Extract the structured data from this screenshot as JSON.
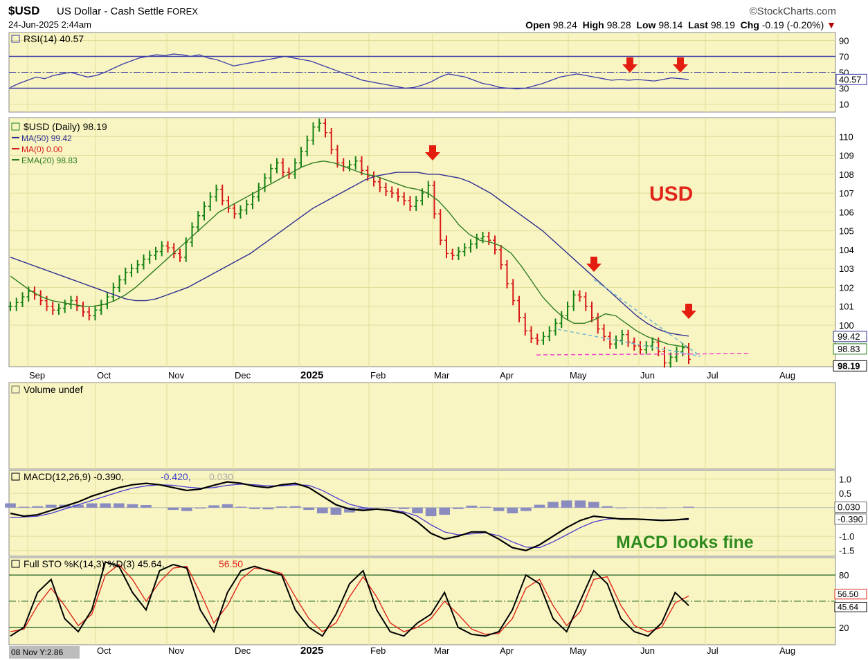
{
  "header": {
    "symbol": "$USD",
    "name": "US Dollar - Cash Settle",
    "exchange": "FOREX",
    "date": "24-Jun-2025 2:44am",
    "brand": "©StockCharts.com",
    "quote": {
      "open_label": "Open",
      "open": "98.24",
      "high_label": "High",
      "high": "98.28",
      "low_label": "Low",
      "low": "98.14",
      "last_label": "Last",
      "last": "98.19",
      "chg_label": "Chg",
      "chg": "-0.19 (-0.20%)"
    }
  },
  "colors": {
    "panel_bg": "#f8f5c3",
    "grid": "#e2dc9a",
    "ma50": "#2d2d8f",
    "ema20": "#2e7d1e",
    "up": "#148214",
    "down": "#d81818",
    "arrow": "#e31e10",
    "pink": "#ee44cc",
    "annot_red": "#e0261a",
    "annot_green": "#2e8b1e",
    "macd_hist": "#8a8cc0",
    "sto_d": "#e0261a"
  },
  "chart_data": [
    {
      "type": "line",
      "panel": "RSI",
      "legend": "RSI(14) 40.57",
      "ticks": [
        "90",
        "70",
        "50",
        "30",
        "10"
      ],
      "ylim": [
        0,
        100
      ],
      "last_value_label": "40.57",
      "values": [
        31,
        36,
        40,
        44,
        42,
        46,
        48,
        50,
        47,
        44,
        46,
        50,
        55,
        60,
        64,
        68,
        70,
        72,
        71,
        73,
        72,
        70,
        72,
        68,
        66,
        62,
        58,
        60,
        62,
        64,
        66,
        68,
        70,
        68,
        66,
        64,
        60,
        56,
        52,
        48,
        44,
        40,
        38,
        36,
        34,
        32,
        30,
        31,
        34,
        38,
        44,
        48,
        46,
        44,
        40,
        36,
        34,
        31,
        30,
        29,
        30,
        33,
        36,
        40,
        44,
        46,
        48,
        46,
        44,
        42,
        40,
        41,
        40,
        41,
        40,
        39,
        41,
        43,
        42,
        41
      ]
    },
    {
      "type": "line",
      "panel": "Price",
      "legend": {
        "title": "$USD (Daily) 98.19",
        "ma50": "MA(50) 99.42",
        "ma0": "MA(0) 0.00",
        "ema20": "EMA(20) 98.83"
      },
      "y_ticks": [
        "110",
        "109",
        "108",
        "107",
        "106",
        "105",
        "104",
        "103",
        "102",
        "101",
        "100"
      ],
      "ylim": [
        97.8,
        111
      ],
      "x_labels": [
        "Sep",
        "Oct",
        "Nov",
        "Dec",
        "2025",
        "Feb",
        "Mar",
        "Apr",
        "May",
        "Jun",
        "Jul",
        "Aug"
      ],
      "right_labels": [
        "99.42",
        "98.83",
        "98.19"
      ],
      "annotation": "USD",
      "close": [
        101.0,
        101.2,
        101.5,
        101.8,
        101.6,
        101.3,
        101.0,
        100.8,
        100.9,
        101.1,
        101.3,
        101.0,
        100.7,
        100.5,
        100.8,
        101.1,
        101.5,
        102.0,
        102.4,
        102.8,
        103.0,
        103.2,
        103.5,
        103.7,
        103.9,
        104.2,
        104.1,
        103.8,
        103.6,
        104.4,
        105.2,
        105.8,
        106.3,
        106.8,
        107.2,
        106.6,
        106.2,
        105.9,
        106.1,
        106.4,
        106.8,
        107.3,
        107.8,
        108.3,
        108.6,
        108.1,
        108.0,
        108.6,
        109.2,
        109.8,
        110.5,
        110.7,
        110.2,
        109.3,
        108.6,
        108.4,
        108.5,
        108.7,
        108.2,
        107.9,
        107.6,
        107.3,
        107.1,
        107.0,
        106.8,
        106.6,
        106.3,
        106.6,
        107.0,
        107.4,
        105.9,
        104.5,
        103.8,
        103.7,
        103.9,
        104.1,
        104.3,
        104.6,
        104.7,
        104.5,
        104.0,
        103.2,
        102.2,
        101.3,
        100.4,
        99.7,
        99.3,
        99.2,
        99.4,
        99.7,
        100.1,
        100.5,
        101.0,
        101.6,
        101.5,
        101.0,
        100.4,
        99.8,
        99.4,
        99.0,
        99.2,
        99.5,
        99.1,
        98.9,
        98.7,
        98.9,
        99.1,
        98.6,
        98.0,
        98.3,
        98.6,
        98.8,
        98.19
      ],
      "ma50": [
        103.6,
        103.4,
        103.2,
        103.0,
        102.8,
        102.6,
        102.4,
        102.2,
        102.0,
        101.8,
        101.6,
        101.4,
        101.3,
        101.3,
        101.4,
        101.6,
        101.8,
        102.0,
        102.3,
        102.6,
        102.9,
        103.2,
        103.5,
        103.8,
        104.2,
        104.6,
        105.0,
        105.4,
        105.8,
        106.2,
        106.5,
        106.8,
        107.1,
        107.4,
        107.7,
        107.9,
        108.0,
        108.1,
        108.1,
        108.1,
        108.0,
        108.0,
        107.9,
        107.8,
        107.6,
        107.3,
        107.0,
        106.6,
        106.2,
        105.8,
        105.4,
        105.0,
        104.5,
        104.0,
        103.5,
        103.0,
        102.5,
        102.0,
        101.5,
        101.0,
        100.5,
        100.1,
        99.8,
        99.6,
        99.5,
        99.42
      ],
      "ema20": [
        102.6,
        102.2,
        101.8,
        101.5,
        101.3,
        101.2,
        101.1,
        101.0,
        101.0,
        101.1,
        101.3,
        101.6,
        102.0,
        102.5,
        103.0,
        103.5,
        104.0,
        104.5,
        105.0,
        105.5,
        106.0,
        106.3,
        106.6,
        106.9,
        107.2,
        107.5,
        107.8,
        108.1,
        108.4,
        108.6,
        108.7,
        108.6,
        108.4,
        108.2,
        108.0,
        107.9,
        107.7,
        107.5,
        107.3,
        107.2,
        107.0,
        106.6,
        106.0,
        105.3,
        104.8,
        104.5,
        104.4,
        104.2,
        103.8,
        103.1,
        102.3,
        101.5,
        100.9,
        100.4,
        100.1,
        100.1,
        100.3,
        100.6,
        100.5,
        100.1,
        99.7,
        99.4,
        99.2,
        99.0,
        98.9,
        98.83
      ]
    },
    {
      "type": "bar",
      "panel": "Volume",
      "legend": "Volume undef",
      "values": []
    },
    {
      "type": "line",
      "panel": "MACD",
      "legend": {
        "macd": "MACD(12,26,9) -0.390,",
        "signal": "-0.420,",
        "hist": "0.030"
      },
      "ticks": [
        "1.0",
        "0.5",
        "-1.0",
        "-1.5"
      ],
      "ylim": [
        -1.7,
        1.3
      ],
      "right_labels": [
        "0.030",
        "-0.390"
      ],
      "annotation": "MACD looks fine",
      "macd": [
        -0.2,
        -0.3,
        -0.25,
        -0.1,
        0.05,
        0.2,
        0.4,
        0.55,
        0.7,
        0.8,
        0.85,
        0.8,
        0.7,
        0.6,
        0.65,
        0.78,
        0.9,
        0.85,
        0.75,
        0.7,
        0.8,
        0.85,
        0.7,
        0.4,
        0.1,
        -0.05,
        -0.1,
        -0.05,
        -0.1,
        -0.2,
        -0.5,
        -0.9,
        -1.1,
        -1.0,
        -0.85,
        -0.85,
        -1.1,
        -1.4,
        -1.5,
        -1.3,
        -1.0,
        -0.7,
        -0.45,
        -0.3,
        -0.35,
        -0.4,
        -0.4,
        -0.42,
        -0.45,
        -0.43,
        -0.39
      ],
      "signal": [
        -0.35,
        -0.33,
        -0.3,
        -0.2,
        -0.05,
        0.1,
        0.25,
        0.4,
        0.55,
        0.68,
        0.76,
        0.8,
        0.78,
        0.72,
        0.68,
        0.7,
        0.78,
        0.82,
        0.8,
        0.76,
        0.76,
        0.8,
        0.78,
        0.6,
        0.35,
        0.12,
        0.0,
        -0.05,
        -0.08,
        -0.15,
        -0.3,
        -0.6,
        -0.85,
        -0.95,
        -0.92,
        -0.88,
        -0.98,
        -1.2,
        -1.38,
        -1.4,
        -1.2,
        -0.95,
        -0.7,
        -0.5,
        -0.4,
        -0.38,
        -0.4,
        -0.41,
        -0.43,
        -0.43,
        -0.42
      ],
      "hist": [
        0.15,
        0.03,
        0.05,
        0.1,
        0.1,
        0.1,
        0.15,
        0.15,
        0.15,
        0.12,
        0.09,
        0.0,
        -0.08,
        -0.12,
        -0.03,
        0.08,
        0.12,
        0.03,
        -0.05,
        -0.06,
        0.04,
        0.05,
        -0.08,
        -0.2,
        -0.25,
        -0.17,
        -0.1,
        0.0,
        -0.02,
        -0.05,
        -0.2,
        -0.3,
        -0.25,
        -0.05,
        0.07,
        0.03,
        -0.12,
        -0.2,
        -0.12,
        0.1,
        0.2,
        0.25,
        0.25,
        0.2,
        0.05,
        -0.02,
        0.0,
        -0.01,
        -0.02,
        0.0,
        0.03
      ]
    },
    {
      "type": "line",
      "panel": "Full STO",
      "legend": {
        "k": "Full STO %K(14,3) %D(3) 45.64,",
        "d": "56.50"
      },
      "ticks": [
        "80",
        "20"
      ],
      "ylim": [
        0,
        100
      ],
      "right_labels": [
        "56.50",
        "45.64"
      ],
      "corner_label": "08 Nov Y:2.86",
      "x_labels": [
        "Oct",
        "Nov",
        "Dec",
        "2025",
        "Feb",
        "Mar",
        "Apr",
        "May",
        "Jun",
        "Jul",
        "Aug"
      ],
      "k": [
        10,
        20,
        60,
        75,
        30,
        15,
        40,
        95,
        90,
        60,
        40,
        85,
        92,
        88,
        40,
        15,
        60,
        85,
        90,
        85,
        80,
        40,
        20,
        10,
        35,
        70,
        85,
        40,
        15,
        10,
        25,
        35,
        60,
        20,
        12,
        10,
        15,
        40,
        80,
        70,
        30,
        15,
        50,
        85,
        70,
        30,
        15,
        10,
        25,
        60,
        45
      ],
      "d": [
        15,
        18,
        45,
        65,
        45,
        22,
        35,
        80,
        92,
        75,
        50,
        72,
        88,
        90,
        60,
        25,
        45,
        75,
        88,
        86,
        82,
        55,
        30,
        15,
        25,
        55,
        78,
        55,
        25,
        15,
        20,
        30,
        50,
        35,
        18,
        12,
        13,
        30,
        65,
        75,
        45,
        22,
        38,
        75,
        78,
        45,
        22,
        15,
        20,
        48,
        56
      ]
    }
  ]
}
